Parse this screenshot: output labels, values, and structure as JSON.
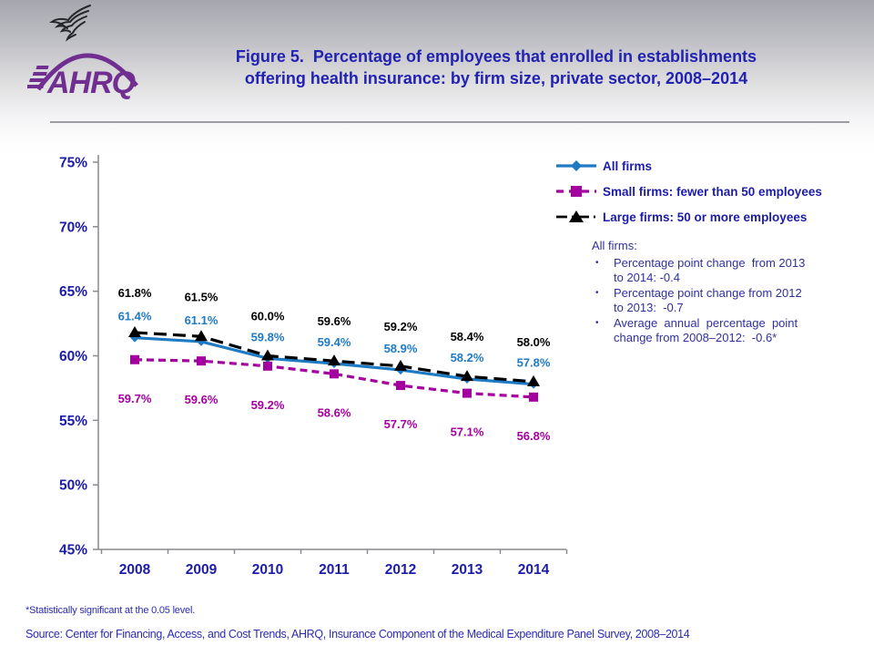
{
  "header": {
    "agency_logo": "AHRQ",
    "title_line1": "Figure 5.  Percentage of employees that enrolled in establishments",
    "title_line2": "offering health insurance: by firm size, private sector, 2008–2014"
  },
  "chart_data": {
    "type": "line",
    "categories": [
      "2008",
      "2009",
      "2010",
      "2011",
      "2012",
      "2013",
      "2014"
    ],
    "series": [
      {
        "name": "All firms",
        "values": [
          61.4,
          61.1,
          59.8,
          59.4,
          58.9,
          58.2,
          57.8
        ],
        "color": "#1F7AC4",
        "style": "solid",
        "marker": "diamond"
      },
      {
        "name": "Small firms: fewer than 50 employees",
        "values": [
          59.7,
          59.6,
          59.2,
          58.6,
          57.7,
          57.1,
          56.8
        ],
        "color": "#A4009F",
        "style": "dashed",
        "marker": "square"
      },
      {
        "name": "Large firms: 50 or more employees",
        "values": [
          61.8,
          61.5,
          60.0,
          59.6,
          59.2,
          58.4,
          58.0
        ],
        "color": "#000000",
        "style": "long-dash",
        "marker": "triangle"
      }
    ],
    "title": "",
    "xlabel": "",
    "ylabel": "",
    "ylim": [
      45,
      75
    ],
    "ytick_step": 5,
    "ytick_suffix": "%",
    "grid": false,
    "legend_position": "top-right",
    "data_labels": true,
    "label_format": "{value}%"
  },
  "annotation": {
    "heading": "All firms:",
    "bullet_char": "•",
    "bullets": [
      [
        "Percentage point change  from 2013",
        "to 2014: -0.4"
      ],
      [
        "Percentage point change from 2012",
        "to 2013:  -0.7"
      ],
      [
        "Average  annual  percentage  point",
        "change from 2008–2012:  -0.6*"
      ]
    ]
  },
  "footer": {
    "footnote": "*Statistically significant at the 0.05 level.",
    "source": "Source: Center for Financing, Access, and Cost Trends, AHRQ, Insurance Component of the Medical Expenditure Panel Survey,  2008–2014"
  },
  "colors": {
    "title_blue": "#2222B2",
    "axis_label_blue": "#1C1CA8",
    "legend_text_blue": "#1C1CA8",
    "annotation_blue": "#3030A0",
    "footer_blue": "#2B2BB5",
    "all_firms_blue": "#1F7AC4",
    "small_firms_magenta": "#A4009F",
    "large_firms_black": "#000000",
    "logo_purple": "#702F90",
    "header_gray": "#A6A6AE",
    "divider_gray": "#9B9BA1",
    "axis_line_gray": "#8A8A8F"
  }
}
